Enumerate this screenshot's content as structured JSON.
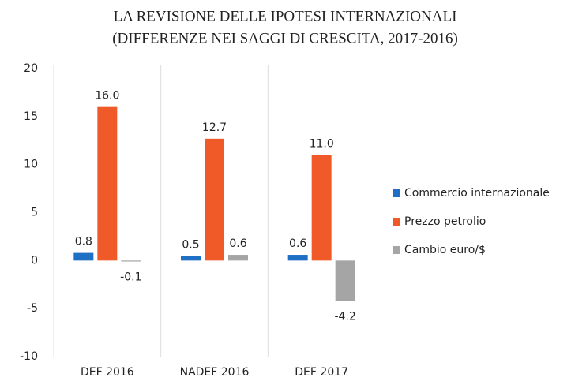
{
  "chart_data": {
    "type": "bar",
    "title": [
      "LA REVISIONE DELLE IPOTESI INTERNAZIONALI",
      "(DIFFERENZE NEI SAGGI DI CRESCITA, 2017-2016)"
    ],
    "categories": [
      "DEF 2016",
      "NADEF 2016",
      "DEF 2017"
    ],
    "series": [
      {
        "name": "Commercio internazionale",
        "color": "#1f6fc5",
        "values": [
          0.8,
          0.5,
          0.6
        ],
        "value_labels": [
          "0.8",
          "0.5",
          "0.6"
        ]
      },
      {
        "name": "Prezzo petrolio",
        "color": "#f05a28",
        "values": [
          16,
          12.7,
          11
        ],
        "value_labels": [
          "16.0",
          "12.7",
          "11.0"
        ]
      },
      {
        "name": "Cambio euro/$",
        "color": "#a5a5a5",
        "values": [
          -0.1,
          0.6,
          -4.2
        ],
        "value_labels": [
          "-0.1",
          "0.6",
          "-4.2"
        ]
      }
    ],
    "ylim": [
      -10,
      20
    ],
    "yticks": [
      20,
      15,
      10,
      5,
      0,
      -5,
      -10
    ],
    "legend": "right"
  }
}
